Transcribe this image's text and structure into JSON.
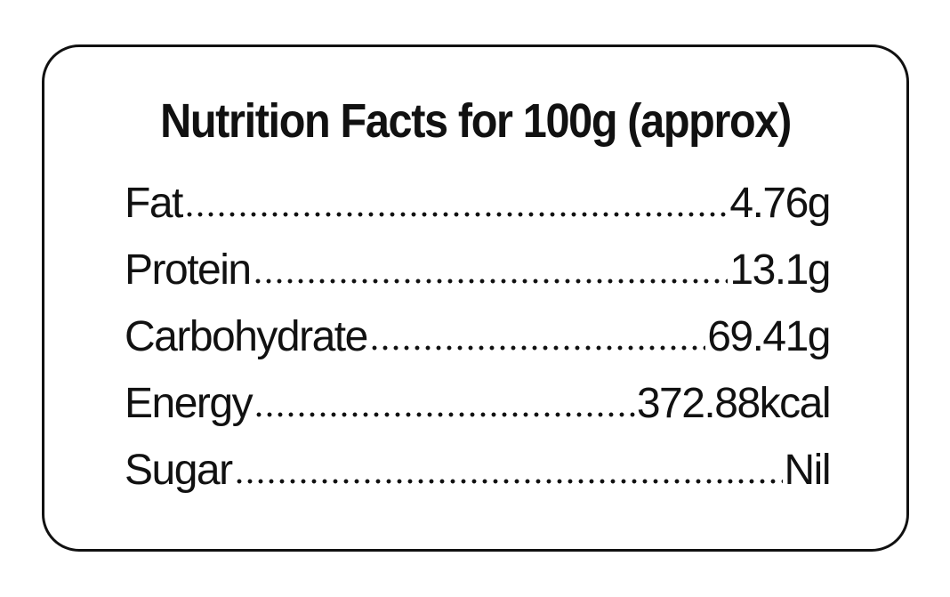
{
  "title": "Nutrition Facts for 100g (approx)",
  "rows": [
    {
      "label": "Fat",
      "value": "4.76g"
    },
    {
      "label": "Protein",
      "value": "13.1g"
    },
    {
      "label": "Carbohydrate",
      "value": "69.41g"
    },
    {
      "label": "Energy",
      "value": "372.88kcal"
    },
    {
      "label": "Sugar",
      "value": "Nil"
    }
  ]
}
